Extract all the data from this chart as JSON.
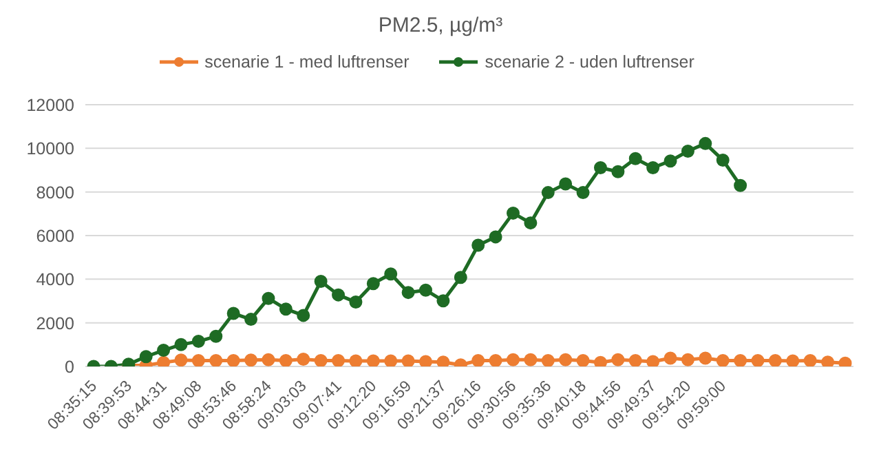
{
  "chart_data": {
    "type": "line",
    "title": "PM2.5, µg/m³",
    "categories": [
      "08:35:15",
      null,
      "08:39:53",
      null,
      "08:44:31",
      null,
      "08:49:08",
      null,
      "08:53:46",
      null,
      "08:58:24",
      null,
      "09:03:03",
      null,
      "09:07:41",
      null,
      "09:12:20",
      null,
      "09:16:59",
      null,
      "09:21:37",
      null,
      "09:26:16",
      null,
      "09:30:56",
      null,
      "09:35:36",
      null,
      "09:40:18",
      null,
      "09:44:56",
      null,
      "09:49:37",
      null,
      "09:54:20",
      null,
      "09:59:00",
      null,
      null,
      null,
      null,
      null,
      null,
      null
    ],
    "series": [
      {
        "name": "scenarie 1 - med luftrenser",
        "color": "#ed7d31",
        "values": [
          null,
          null,
          50,
          50,
          180,
          290,
          270,
          270,
          270,
          290,
          310,
          270,
          330,
          270,
          270,
          250,
          250,
          250,
          250,
          220,
          200,
          70,
          270,
          270,
          310,
          310,
          270,
          310,
          270,
          180,
          310,
          270,
          220,
          380,
          310,
          380,
          270,
          270,
          270,
          270,
          250,
          270,
          200,
          150
        ]
      },
      {
        "name": "scenarie 2 - uden luftrenser",
        "color": "#1e6b24",
        "values": [
          0,
          0,
          100,
          450,
          740,
          1000,
          1150,
          1380,
          2430,
          2160,
          3120,
          2630,
          2340,
          3900,
          3280,
          2950,
          3800,
          4240,
          3390,
          3500,
          3010,
          4080,
          5560,
          5940,
          7030,
          6580,
          7970,
          8370,
          7970,
          9110,
          8930,
          9530,
          9110,
          9420,
          9870,
          10220,
          9460,
          8300,
          null,
          null,
          null,
          null,
          null,
          null
        ]
      }
    ],
    "ylim": [
      0,
      12000
    ],
    "yticks": [
      0,
      2000,
      4000,
      6000,
      8000,
      10000,
      12000
    ],
    "grid": "y",
    "legend": "top",
    "marker": "circle",
    "line_style": "solid"
  }
}
